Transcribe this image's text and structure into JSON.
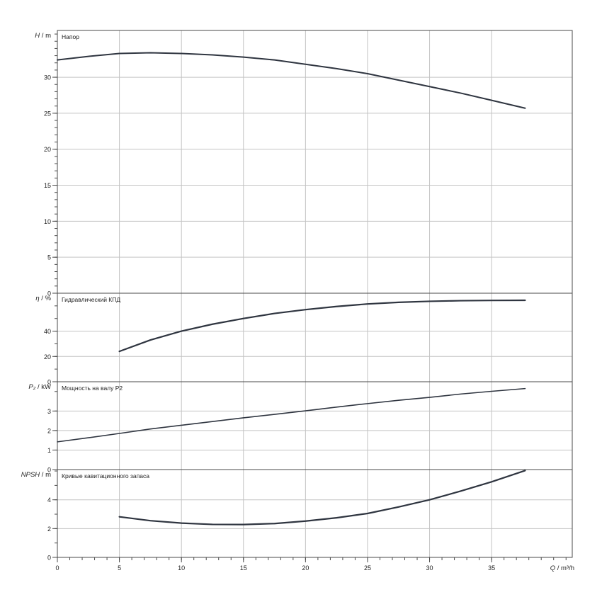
{
  "chart_data": {
    "type": "line",
    "x_axis": {
      "label_symbol": "Q",
      "label_unit": "m³/h",
      "min": 0,
      "max": 41.5,
      "ticks": [
        0,
        5,
        10,
        15,
        20,
        25,
        30,
        35
      ],
      "tick_labels": [
        "0",
        "5",
        "10",
        "15",
        "20",
        "25",
        "30",
        "35"
      ],
      "minor_step": 1,
      "grid": true
    },
    "panels": [
      {
        "id": "head",
        "title": "Напор",
        "ylabel_symbol": "H",
        "ylabel_unit": "m",
        "ylim": [
          0,
          36.5
        ],
        "yticks": [
          0,
          5,
          10,
          15,
          20,
          25,
          30
        ],
        "ytick_labels": [
          "0",
          "5",
          "10",
          "15",
          "20",
          "25",
          "30"
        ],
        "minor_step": 1,
        "stroke_width": 2,
        "x": [
          0,
          2.5,
          5,
          7.5,
          10,
          12.5,
          15,
          17.5,
          20,
          22.5,
          25,
          27.5,
          30,
          32.5,
          35,
          37.7
        ],
        "y": [
          32.4,
          32.9,
          33.3,
          33.4,
          33.3,
          33.1,
          32.8,
          32.4,
          31.8,
          31.2,
          30.5,
          29.6,
          28.7,
          27.8,
          26.8,
          25.7
        ]
      },
      {
        "id": "efficiency",
        "title": "Гидравлический КПД",
        "ylabel_symbol": "η",
        "ylabel_unit": "%",
        "ylim": [
          0,
          70
        ],
        "yticks": [
          0,
          20,
          40
        ],
        "ytick_labels": [
          "0",
          "20",
          "40"
        ],
        "minor_step": 10,
        "stroke_width": 2.2,
        "x": [
          5,
          7.5,
          10,
          12.5,
          15,
          17.5,
          20,
          22.5,
          25,
          27.5,
          30,
          32.5,
          35,
          37.7
        ],
        "y": [
          24,
          33,
          40,
          45.5,
          50,
          54,
          57,
          59.5,
          61.5,
          62.8,
          63.6,
          64.1,
          64.3,
          64.4
        ]
      },
      {
        "id": "power",
        "title": "Мощность на валу P2",
        "ylabel_symbol": "P₂",
        "ylabel_unit": "kW",
        "ylim": [
          0,
          4.5
        ],
        "yticks": [
          0,
          1,
          2,
          3
        ],
        "ytick_labels": [
          "0",
          "1",
          "2",
          "3"
        ],
        "minor_step": 1,
        "stroke_width": 1.6,
        "x": [
          0,
          2.5,
          5,
          7.5,
          10,
          12.5,
          15,
          17.5,
          20,
          22.5,
          25,
          27.5,
          30,
          32.5,
          35,
          37.7
        ],
        "y": [
          1.42,
          1.63,
          1.85,
          2.08,
          2.27,
          2.46,
          2.65,
          2.83,
          3.01,
          3.2,
          3.38,
          3.55,
          3.7,
          3.87,
          4.01,
          4.15
        ]
      },
      {
        "id": "npsh",
        "title": "Кривые кавитационного запаса",
        "ylabel_symbol": "NPSH",
        "ylabel_unit": "m",
        "ylim": [
          0,
          6.1
        ],
        "yticks": [
          0,
          2,
          4
        ],
        "ytick_labels": [
          "0",
          "2",
          "4"
        ],
        "minor_step": 1,
        "stroke_width": 2.2,
        "x": [
          5,
          7.5,
          10,
          12.5,
          15,
          17.5,
          20,
          22.5,
          25,
          27.5,
          30,
          32.5,
          35,
          37.7
        ],
        "y": [
          2.82,
          2.55,
          2.38,
          2.29,
          2.28,
          2.35,
          2.52,
          2.75,
          3.05,
          3.5,
          4.0,
          4.6,
          5.25,
          6.03
        ]
      }
    ]
  }
}
